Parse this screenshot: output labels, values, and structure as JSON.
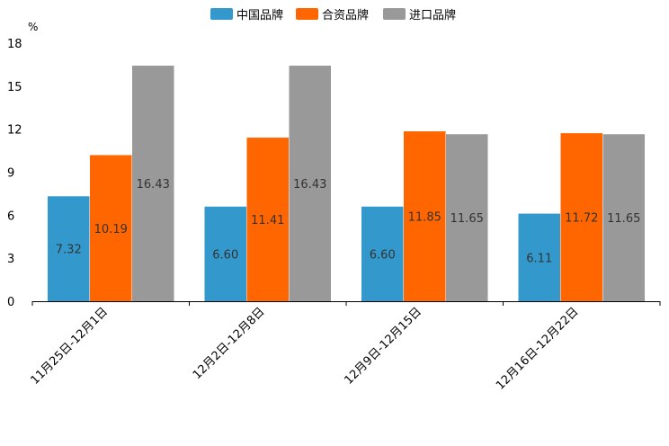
{
  "chart_data": {
    "type": "bar",
    "unit_label": "%",
    "categories": [
      "11月25日-12月1日",
      "12月2日-12月8日",
      "12月9日-12月15日",
      "12月16日-12月22日"
    ],
    "series": [
      {
        "name": "中国品牌",
        "color": "#3399cc",
        "values": [
          7.32,
          6.6,
          6.6,
          6.11
        ]
      },
      {
        "name": "合资品牌",
        "color": "#ff6600",
        "values": [
          10.19,
          11.41,
          11.85,
          11.72
        ]
      },
      {
        "name": "进口品牌",
        "color": "#999999",
        "values": [
          16.43,
          16.43,
          11.65,
          11.65
        ]
      }
    ],
    "value_labels": [
      [
        "7.32",
        "6.60",
        "6.60",
        "6.11"
      ],
      [
        "10.19",
        "11.41",
        "11.85",
        "11.72"
      ],
      [
        "16.43",
        "16.43",
        "11.65",
        "11.65"
      ]
    ],
    "yticks": [
      "0",
      "3",
      "6",
      "9",
      "12",
      "15",
      "18"
    ],
    "ylim": [
      0,
      18
    ],
    "legend_position": "top-center",
    "grid": false
  }
}
